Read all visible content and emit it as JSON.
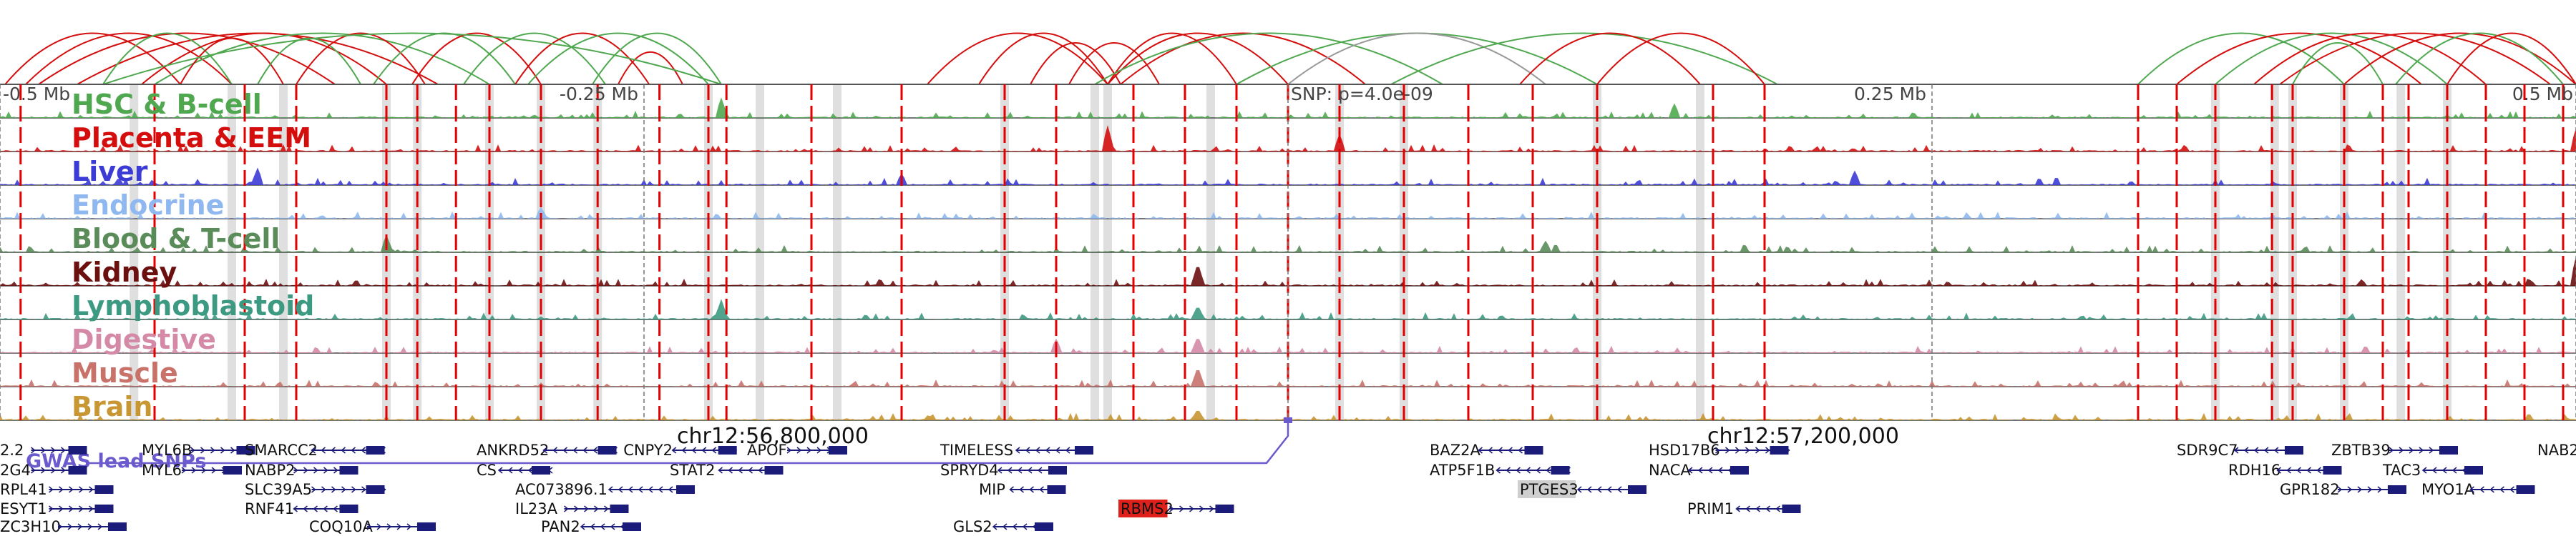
{
  "axis": {
    "ticks": [
      {
        "label": "-0.5 Mb",
        "value": -0.5
      },
      {
        "label": "-0.25 Mb",
        "value": -0.25
      },
      {
        "label": "SNP: p=4.0e-09",
        "value": 0.0
      },
      {
        "label": "0.25 Mb",
        "value": 0.25
      },
      {
        "label": "0.5 Mb",
        "value": 0.5
      }
    ],
    "range": [
      -0.5,
      0.5
    ]
  },
  "tracks": [
    {
      "name": "HSC & B-cell",
      "color": "#4fa84f"
    },
    {
      "name": "Placenta & EEM",
      "color": "#d40d0d"
    },
    {
      "name": "Liver",
      "color": "#3b3bd6"
    },
    {
      "name": "Endocrine",
      "color": "#8fb8f0"
    },
    {
      "name": "Blood & T-cell",
      "color": "#5a8c5a"
    },
    {
      "name": "Kidney",
      "color": "#6b0f0f"
    },
    {
      "name": "Lymphoblastoid",
      "color": "#3d9a82"
    },
    {
      "name": "Digestive",
      "color": "#d48aa6"
    },
    {
      "name": "Muscle",
      "color": "#c8726a"
    },
    {
      "name": "Brain",
      "color": "#c89632"
    }
  ],
  "chromosome_labels": [
    {
      "label": "chr12:56,800,000",
      "value": -0.2
    },
    {
      "label": "chr12:57,200,000",
      "value": 0.2
    }
  ],
  "gwas": {
    "label": "GWAS lead SNPs",
    "color": "#6a5acd",
    "value": 0.0
  },
  "genes": [
    {
      "name": "2.2",
      "value": -0.5,
      "row": 0,
      "strand": "+"
    },
    {
      "name": "MYL6B",
      "value": -0.445,
      "row": 0,
      "strand": "+"
    },
    {
      "name": "SMARCC2",
      "value": -0.405,
      "row": 0,
      "strand": "-"
    },
    {
      "name": "ANKRD52",
      "value": -0.315,
      "row": 0,
      "strand": "-"
    },
    {
      "name": "CNPY2",
      "value": -0.258,
      "row": 0,
      "strand": "-"
    },
    {
      "name": "APOF",
      "value": -0.21,
      "row": 0,
      "strand": "+"
    },
    {
      "name": "TIMELESS",
      "value": -0.135,
      "row": 0,
      "strand": "-"
    },
    {
      "name": "BAZ2A",
      "value": 0.055,
      "row": 0,
      "strand": "-"
    },
    {
      "name": "HSD17B6",
      "value": 0.14,
      "row": 0,
      "strand": "+"
    },
    {
      "name": "SDR9C7",
      "value": 0.345,
      "row": 0,
      "strand": "-"
    },
    {
      "name": "ZBTB39",
      "value": 0.405,
      "row": 0,
      "strand": "+"
    },
    {
      "name": "NAB2",
      "value": 0.485,
      "row": 0,
      "strand": "+"
    },
    {
      "name": "2G4",
      "value": -0.5,
      "row": 1,
      "strand": "+"
    },
    {
      "name": "MYL6",
      "value": -0.445,
      "row": 1,
      "strand": "+"
    },
    {
      "name": "NABP2",
      "value": -0.405,
      "row": 1,
      "strand": "+"
    },
    {
      "name": "CS",
      "value": -0.315,
      "row": 1,
      "strand": "-"
    },
    {
      "name": "STAT2",
      "value": -0.24,
      "row": 1,
      "strand": "-"
    },
    {
      "name": "SPRYD4",
      "value": -0.135,
      "row": 1,
      "strand": "-"
    },
    {
      "name": "ATP5F1B",
      "value": 0.055,
      "row": 1,
      "strand": "-"
    },
    {
      "name": "NACA",
      "value": 0.14,
      "row": 1,
      "strand": "-"
    },
    {
      "name": "RDH16",
      "value": 0.365,
      "row": 1,
      "strand": "-"
    },
    {
      "name": "TAC3",
      "value": 0.425,
      "row": 1,
      "strand": "-"
    },
    {
      "name": "RPL41",
      "value": -0.5,
      "row": 2,
      "strand": "+"
    },
    {
      "name": "SLC39A5",
      "value": -0.405,
      "row": 2,
      "strand": "+"
    },
    {
      "name": "AC073896.1",
      "value": -0.3,
      "row": 2,
      "strand": "-"
    },
    {
      "name": "MIP",
      "value": -0.12,
      "row": 2,
      "strand": "-"
    },
    {
      "name": "PTGES3",
      "value": 0.09,
      "row": 2,
      "strand": "-"
    },
    {
      "name": "GPR182",
      "value": 0.385,
      "row": 2,
      "strand": "+"
    },
    {
      "name": "MYO1A",
      "value": 0.44,
      "row": 2,
      "strand": "-"
    },
    {
      "name": "ESYT1",
      "value": -0.5,
      "row": 3,
      "strand": "+"
    },
    {
      "name": "RNF41",
      "value": -0.405,
      "row": 3,
      "strand": "-"
    },
    {
      "name": "IL23A",
      "value": -0.3,
      "row": 3,
      "strand": "+"
    },
    {
      "name": "RBMS2",
      "value": -0.065,
      "row": 3,
      "strand": "+"
    },
    {
      "name": "PRIM1",
      "value": 0.155,
      "row": 3,
      "strand": "-"
    },
    {
      "name": "ZC3H10",
      "value": -0.5,
      "row": 4,
      "strand": "+"
    },
    {
      "name": "COQ10A",
      "value": -0.38,
      "row": 4,
      "strand": "+"
    },
    {
      "name": "PAN2",
      "value": -0.29,
      "row": 4,
      "strand": "-"
    },
    {
      "name": "GLS2",
      "value": -0.13,
      "row": 4,
      "strand": "-"
    }
  ],
  "highlight_genes": {
    "RBMS2": "#e0201b",
    "PTGES3": "#cfcfcf"
  },
  "red_marks": [
    -0.492,
    -0.44,
    -0.405,
    -0.385,
    -0.35,
    -0.338,
    -0.323,
    -0.31,
    -0.29,
    -0.268,
    -0.244,
    -0.225,
    -0.218,
    -0.185,
    -0.15,
    -0.11,
    -0.09,
    -0.06,
    -0.04,
    -0.02,
    0.0,
    0.02,
    0.045,
    0.07,
    0.095,
    0.12,
    0.165,
    0.185,
    0.33,
    0.345,
    0.36,
    0.382,
    0.39,
    0.41,
    0.425,
    0.435,
    0.45,
    0.465,
    0.48,
    0.495
  ],
  "gray_bands": [
    -0.448,
    -0.41,
    -0.39,
    -0.35,
    -0.338,
    -0.31,
    -0.29,
    -0.268,
    -0.225,
    -0.205,
    -0.175,
    -0.11,
    -0.075,
    -0.07,
    -0.03,
    0.02,
    0.045,
    0.12,
    0.16,
    0.36,
    0.383,
    0.39,
    0.41,
    0.432,
    0.45
  ],
  "arcs": [
    {
      "a": -0.498,
      "b": -0.43,
      "color": "#d40d0d"
    },
    {
      "a": -0.49,
      "b": -0.41,
      "color": "#d40d0d"
    },
    {
      "a": -0.485,
      "b": -0.37,
      "color": "#d40d0d"
    },
    {
      "a": -0.47,
      "b": -0.33,
      "color": "#d40d0d"
    },
    {
      "a": -0.46,
      "b": -0.41,
      "color": "#4fa84f"
    },
    {
      "a": -0.445,
      "b": -0.35,
      "color": "#d40d0d"
    },
    {
      "a": -0.44,
      "b": -0.31,
      "color": "#4fa84f"
    },
    {
      "a": -0.43,
      "b": -0.39,
      "color": "#d40d0d"
    },
    {
      "a": -0.4,
      "b": -0.36,
      "color": "#4fa84f"
    },
    {
      "a": -0.385,
      "b": -0.335,
      "color": "#d40d0d"
    },
    {
      "a": -0.355,
      "b": -0.3,
      "color": "#4fa84f"
    },
    {
      "a": -0.34,
      "b": -0.29,
      "color": "#d40d0d"
    },
    {
      "a": -0.32,
      "b": -0.265,
      "color": "#4fa84f"
    },
    {
      "a": -0.3,
      "b": -0.248,
      "color": "#d40d0d"
    },
    {
      "a": -0.295,
      "b": -0.225,
      "color": "#4fa84f"
    },
    {
      "a": -0.27,
      "b": -0.22,
      "color": "#4fa84f"
    },
    {
      "a": -0.26,
      "b": -0.235,
      "color": "#d40d0d"
    },
    {
      "a": -0.46,
      "b": -0.22,
      "color": "#4fa84f"
    },
    {
      "a": -0.14,
      "b": -0.07,
      "color": "#d40d0d"
    },
    {
      "a": -0.12,
      "b": -0.07,
      "color": "#d40d0d"
    },
    {
      "a": -0.1,
      "b": -0.065,
      "color": "#d40d0d"
    },
    {
      "a": -0.085,
      "b": -0.05,
      "color": "#d40d0d"
    },
    {
      "a": -0.07,
      "b": -0.02,
      "color": "#d40d0d"
    },
    {
      "a": -0.07,
      "b": 0.0,
      "color": "#d40d0d"
    },
    {
      "a": -0.065,
      "b": 0.03,
      "color": "#d40d0d"
    },
    {
      "a": -0.075,
      "b": 0.06,
      "color": "#4fa84f"
    },
    {
      "a": -0.02,
      "b": 0.12,
      "color": "#4fa84f"
    },
    {
      "a": 0.0,
      "b": 0.1,
      "color": "#999999"
    },
    {
      "a": 0.04,
      "b": 0.19,
      "color": "#4fa84f"
    },
    {
      "a": 0.09,
      "b": 0.16,
      "color": "#d40d0d"
    },
    {
      "a": 0.12,
      "b": 0.185,
      "color": "#d40d0d"
    },
    {
      "a": 0.33,
      "b": 0.41,
      "color": "#4fa84f"
    },
    {
      "a": 0.345,
      "b": 0.44,
      "color": "#d40d0d"
    },
    {
      "a": 0.36,
      "b": 0.45,
      "color": "#4fa84f"
    },
    {
      "a": 0.375,
      "b": 0.465,
      "color": "#d40d0d"
    },
    {
      "a": 0.385,
      "b": 0.49,
      "color": "#d40d0d"
    },
    {
      "a": 0.39,
      "b": 0.425,
      "color": "#4fa84f"
    },
    {
      "a": 0.41,
      "b": 0.5,
      "color": "#d40d0d"
    },
    {
      "a": 0.43,
      "b": 0.495,
      "color": "#4fa84f"
    },
    {
      "a": 0.45,
      "b": 0.5,
      "color": "#d40d0d"
    }
  ],
  "signal_peaks": [
    {
      "track": 0,
      "at": -0.22,
      "h": 0.7
    },
    {
      "track": 0,
      "at": 0.15,
      "h": 0.5
    },
    {
      "track": 1,
      "at": -0.07,
      "h": 0.9
    },
    {
      "track": 1,
      "at": 0.02,
      "h": 0.6
    },
    {
      "track": 1,
      "at": 0.5,
      "h": 0.8
    },
    {
      "track": 2,
      "at": -0.4,
      "h": 0.6
    },
    {
      "track": 2,
      "at": -0.15,
      "h": 0.4
    },
    {
      "track": 2,
      "at": 0.22,
      "h": 0.5
    },
    {
      "track": 3,
      "at": -0.29,
      "h": 0.4
    },
    {
      "track": 4,
      "at": -0.35,
      "h": 0.6
    },
    {
      "track": 4,
      "at": 0.1,
      "h": 0.4
    },
    {
      "track": 5,
      "at": -0.035,
      "h": 0.8
    },
    {
      "track": 5,
      "at": 0.5,
      "h": 1.0
    },
    {
      "track": 6,
      "at": -0.22,
      "h": 0.7
    },
    {
      "track": 6,
      "at": -0.035,
      "h": 0.5
    },
    {
      "track": 7,
      "at": -0.09,
      "h": 0.5
    },
    {
      "track": 7,
      "at": -0.035,
      "h": 0.6
    },
    {
      "track": 8,
      "at": -0.035,
      "h": 0.7
    },
    {
      "track": 9,
      "at": -0.035,
      "h": 0.4
    }
  ]
}
